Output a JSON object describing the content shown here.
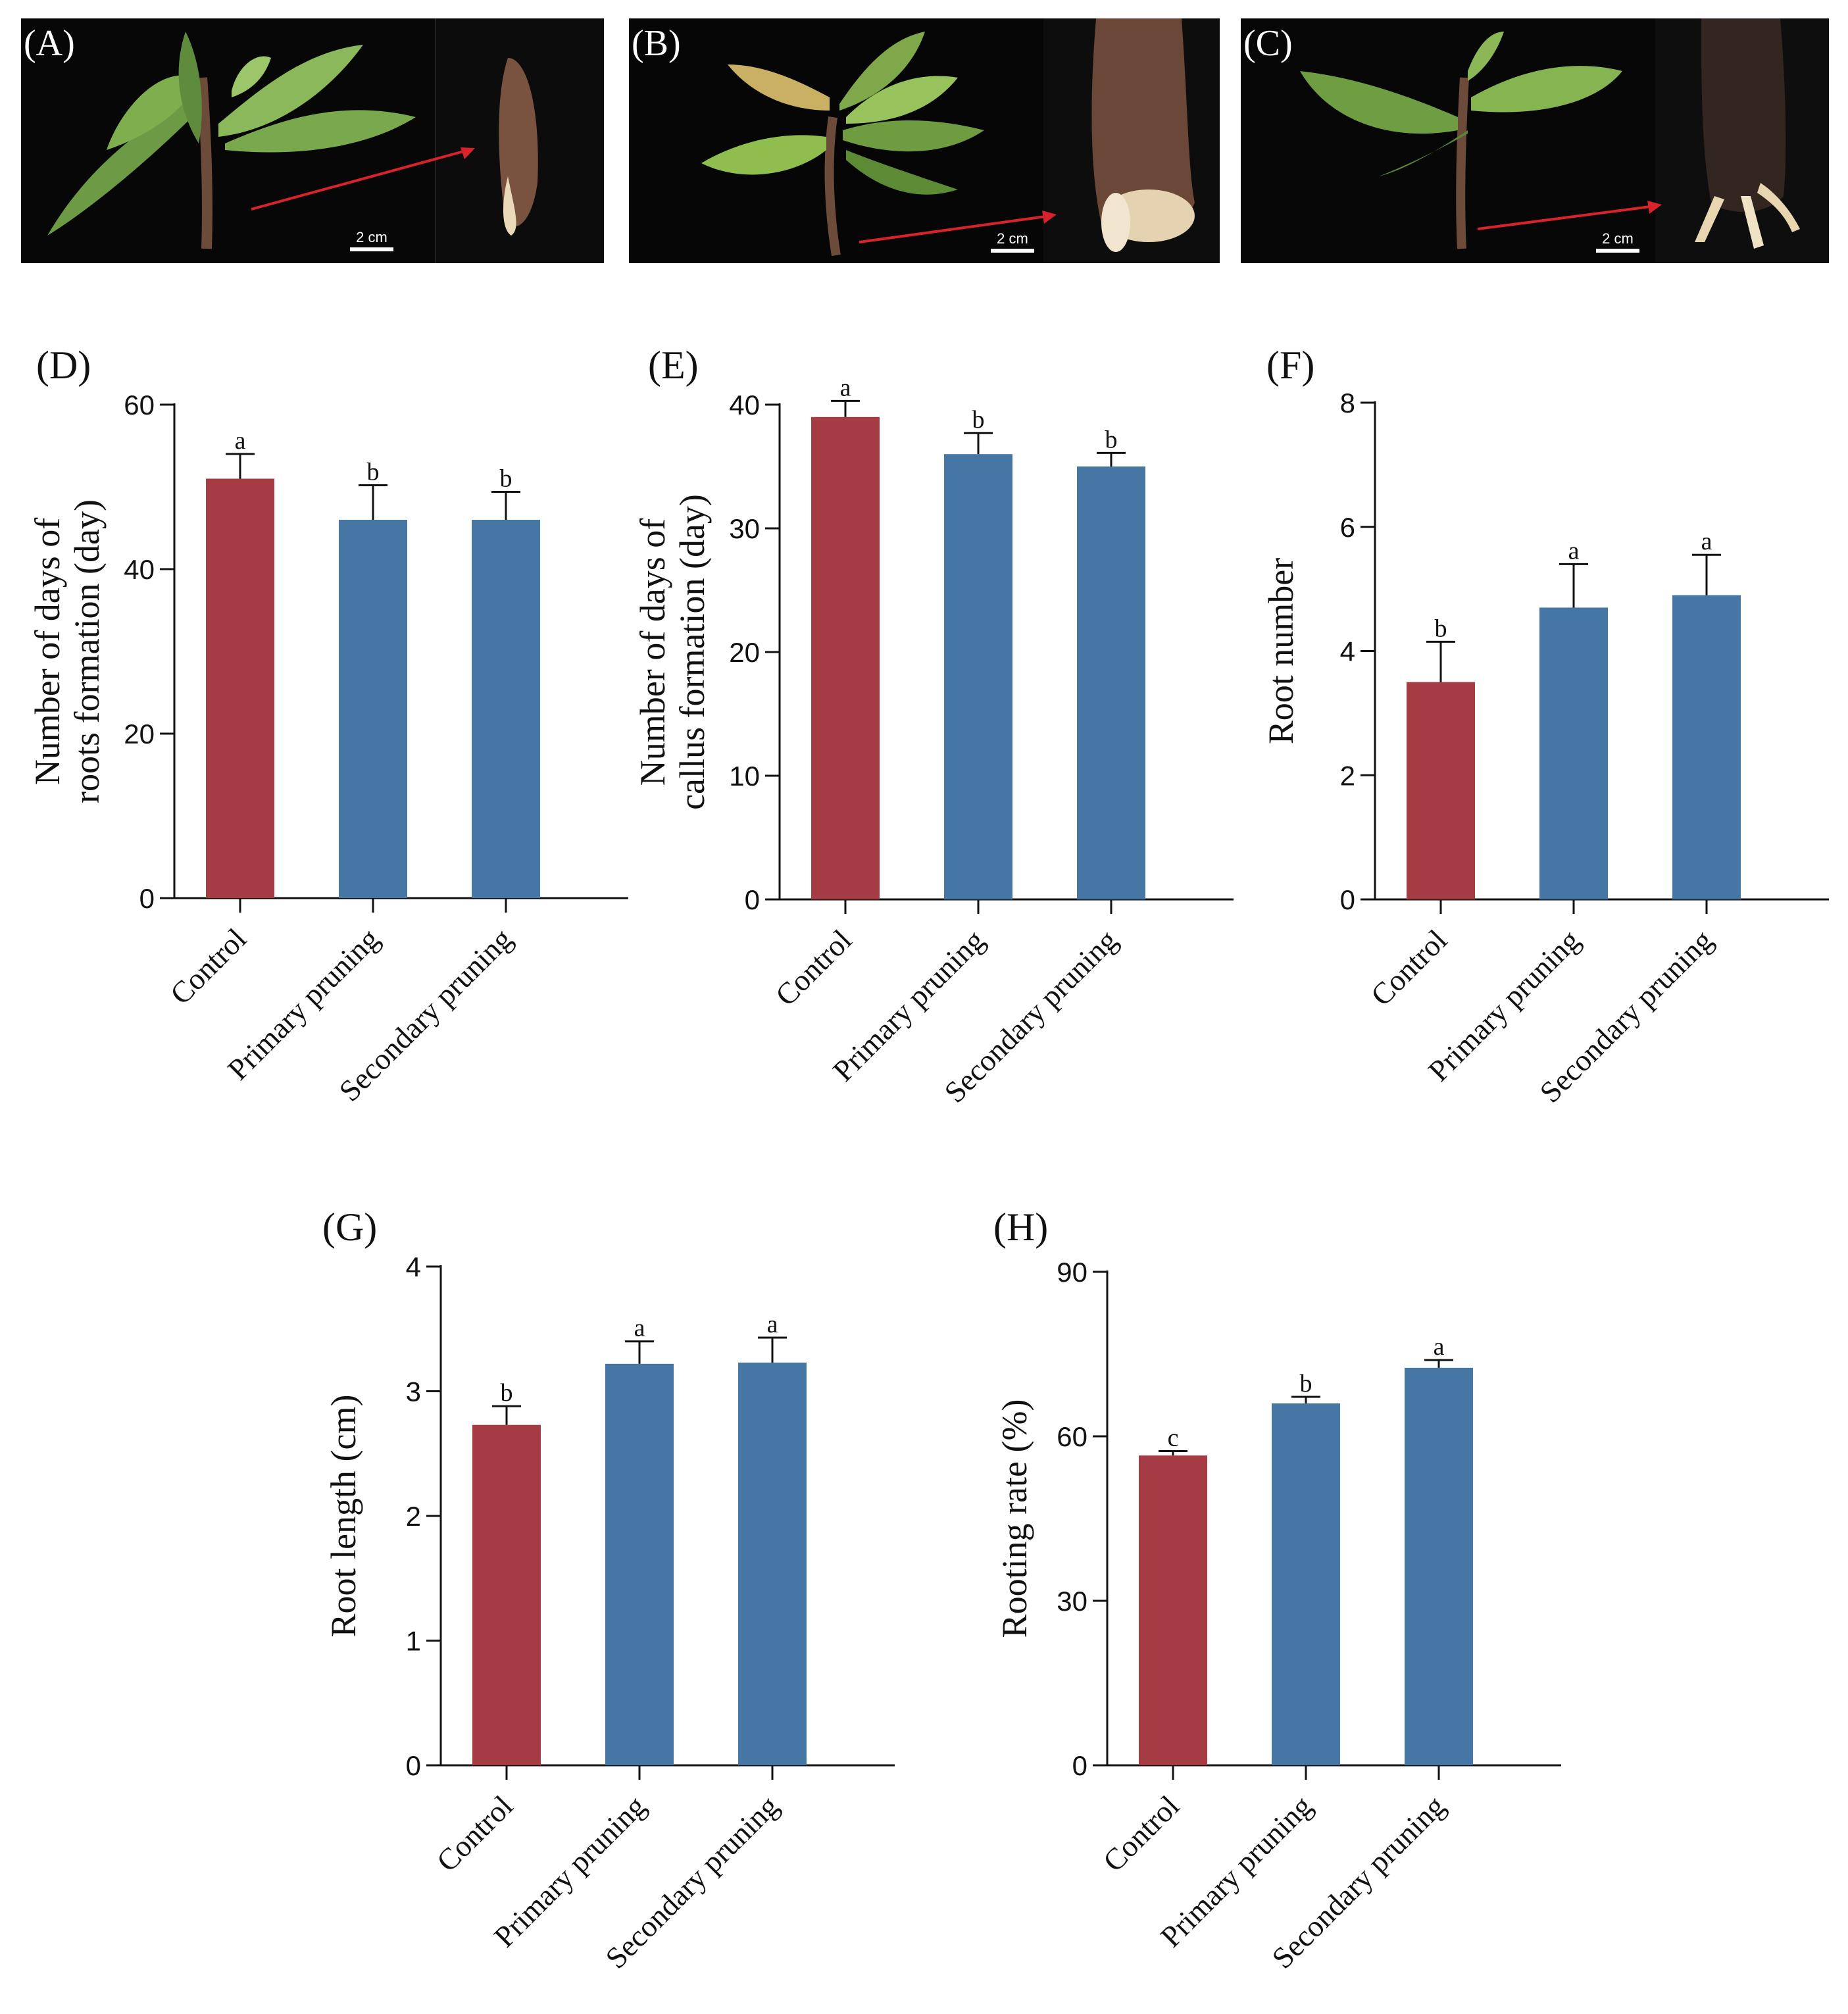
{
  "photos": [
    {
      "label": "(A)",
      "scale": "2 cm"
    },
    {
      "label": "(B)",
      "scale": "2 cm"
    },
    {
      "label": "(C)",
      "scale": "2 cm"
    }
  ],
  "colors": {
    "control": "#a53c44",
    "pruning": "#4677a4",
    "arrow": "#d8232a"
  },
  "chart_data": [
    {
      "label": "(D)",
      "type": "bar",
      "ylabel": "Number of days of\nroots formation (day)",
      "categories": [
        "Control",
        "Primary pruning",
        "Secondary pruning"
      ],
      "values": [
        51,
        46,
        46
      ],
      "errors": [
        3,
        4.2,
        3.4
      ],
      "letters": [
        "a",
        "b",
        "b"
      ],
      "ylim": [
        0,
        60
      ],
      "yticks": [
        0,
        20,
        40,
        60
      ]
    },
    {
      "label": "(E)",
      "type": "bar",
      "ylabel": "Number of days of\ncallus formation (day)",
      "categories": [
        "Control",
        "Primary pruning",
        "Secondary pruning"
      ],
      "values": [
        39,
        36,
        35
      ],
      "errors": [
        1.3,
        1.7,
        1.1
      ],
      "letters": [
        "a",
        "b",
        "b"
      ],
      "ylim": [
        0,
        40
      ],
      "yticks": [
        0,
        10,
        20,
        30,
        40
      ]
    },
    {
      "label": "(F)",
      "type": "bar",
      "ylabel": "Root number",
      "categories": [
        "Control",
        "Primary pruning",
        "Secondary pruning"
      ],
      "values": [
        3.5,
        4.7,
        4.9
      ],
      "errors": [
        0.65,
        0.7,
        0.65
      ],
      "letters": [
        "b",
        "a",
        "a"
      ],
      "ylim": [
        0,
        8
      ],
      "yticks": [
        0,
        2,
        4,
        6,
        8
      ]
    },
    {
      "label": "(G)",
      "type": "bar",
      "ylabel": "Root length (cm)",
      "categories": [
        "Control",
        "Primary pruning",
        "Secondary pruning"
      ],
      "values": [
        2.73,
        3.22,
        3.23
      ],
      "errors": [
        0.15,
        0.18,
        0.2
      ],
      "letters": [
        "b",
        "a",
        "a"
      ],
      "ylim": [
        0,
        4
      ],
      "yticks": [
        0,
        1,
        2,
        3,
        4
      ]
    },
    {
      "label": "(H)",
      "type": "bar",
      "ylabel": "Rooting rate (%)",
      "categories": [
        "Control",
        "Primary pruning",
        "Secondary pruning"
      ],
      "values": [
        56.5,
        66,
        72.5
      ],
      "errors": [
        0.8,
        1.2,
        1.4
      ],
      "letters": [
        "c",
        "b",
        "a"
      ],
      "ylim": [
        0,
        90
      ],
      "yticks": [
        0,
        30,
        60,
        90
      ]
    }
  ]
}
